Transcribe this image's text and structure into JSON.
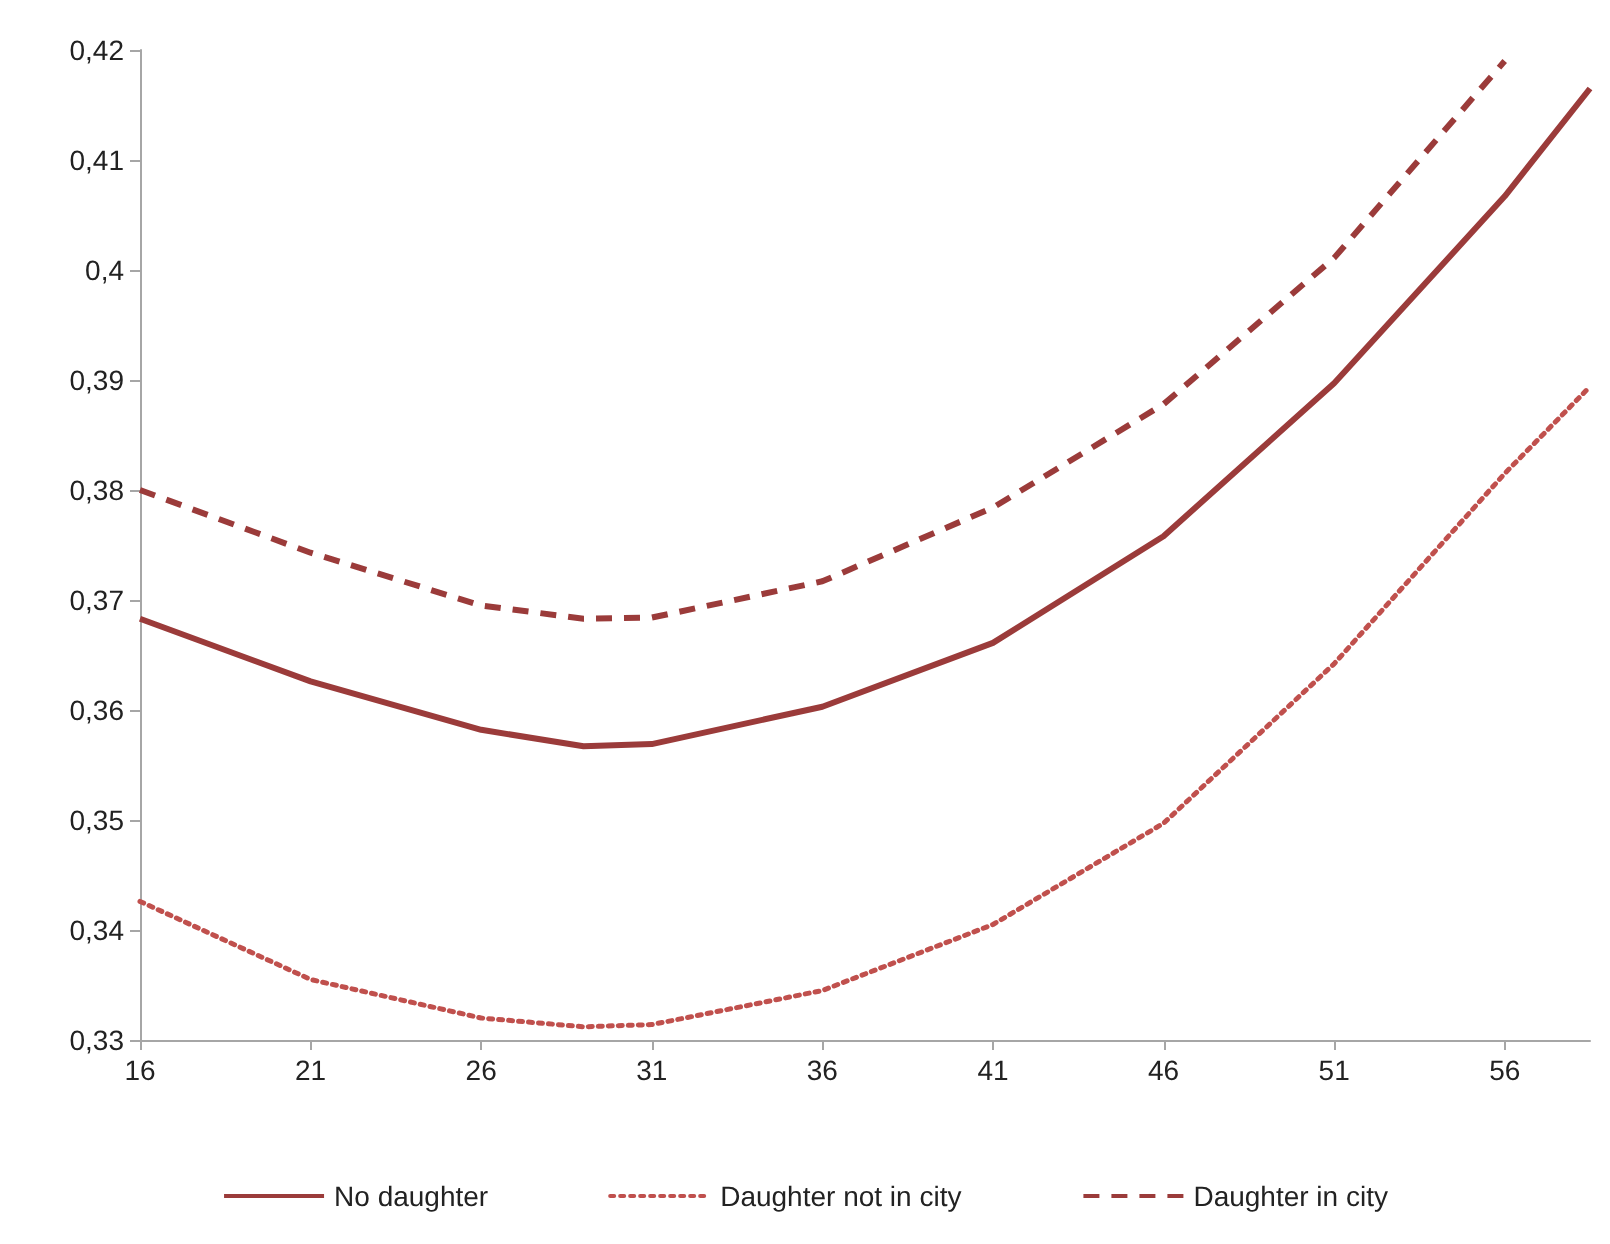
{
  "chart_data": {
    "type": "line",
    "x": [
      16,
      21,
      26,
      29,
      31,
      36,
      41,
      46,
      51,
      56,
      58.5
    ],
    "xlim": [
      16,
      58.5
    ],
    "xticks": [
      16,
      21,
      26,
      31,
      36,
      41,
      46,
      51,
      56
    ],
    "ylim": [
      0.33,
      0.42
    ],
    "yticks": [
      {
        "value": 0.33,
        "label": "0,33"
      },
      {
        "value": 0.34,
        "label": "0,34"
      },
      {
        "value": 0.35,
        "label": "0,35"
      },
      {
        "value": 0.36,
        "label": "0,36"
      },
      {
        "value": 0.37,
        "label": "0,37"
      },
      {
        "value": 0.38,
        "label": "0,38"
      },
      {
        "value": 0.39,
        "label": "0,39"
      },
      {
        "value": 0.4,
        "label": "0,4"
      },
      {
        "value": 0.41,
        "label": "0,41"
      },
      {
        "value": 0.42,
        "label": "0,42"
      }
    ],
    "grid": false,
    "legend": "bottom",
    "marker": "none",
    "series": [
      {
        "name": "No daughter",
        "color": "#9b3b3a",
        "line_style": "solid",
        "values": [
          0.3683,
          0.3626,
          0.3582,
          0.3567,
          0.3569,
          0.3603,
          0.3661,
          0.3758,
          0.3897,
          0.4067,
          0.4165
        ]
      },
      {
        "name": "Daughter not in city",
        "color": "#c0504d",
        "line_style": "dotted",
        "values": [
          0.3426,
          0.3355,
          0.332,
          0.3312,
          0.3314,
          0.3345,
          0.3405,
          0.3497,
          0.3642,
          0.3815,
          0.3894
        ]
      },
      {
        "name": "Daughter in city",
        "color": "#9b3b3a",
        "line_style": "dashed",
        "values": [
          0.38,
          0.3743,
          0.3695,
          0.3683,
          0.3684,
          0.3717,
          0.3784,
          0.3878,
          0.4011,
          0.419,
          null
        ]
      }
    ]
  }
}
